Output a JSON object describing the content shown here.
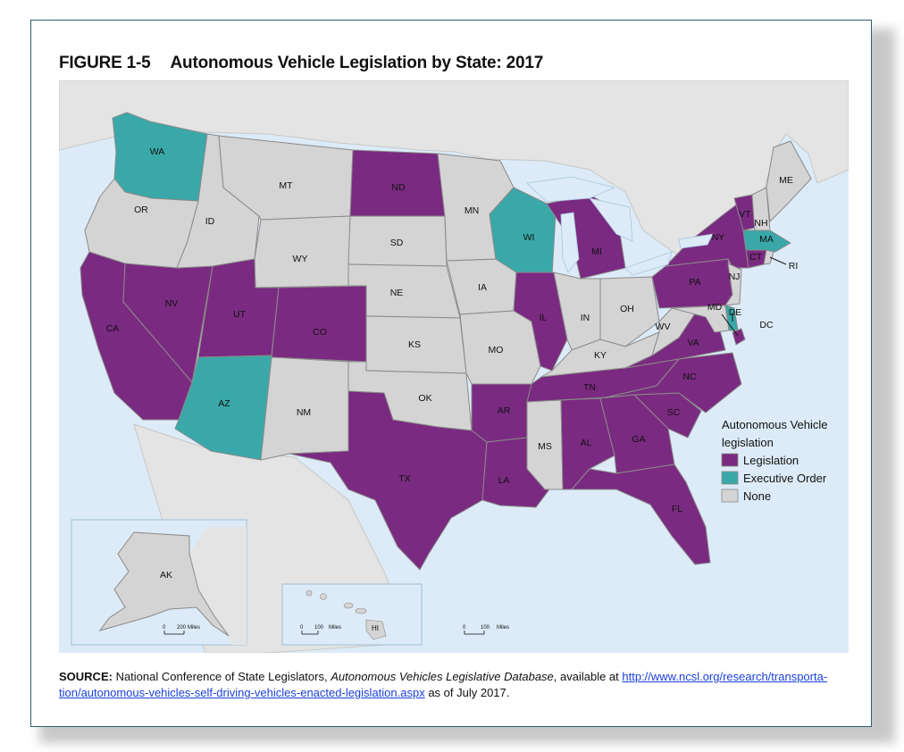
{
  "figure": {
    "number": "FIGURE 1-5",
    "title": "Autonomous Vehicle Legislation by State: 2017"
  },
  "colors": {
    "legislation": "#7a2a80",
    "executive_order": "#3aa8a8",
    "none": "#d4d4d4",
    "water": "#dcebf7",
    "land_outside": "#e4e4e4"
  },
  "legend": {
    "title_line1": "Autonomous Vehicle",
    "title_line2": "legislation",
    "items": [
      {
        "label": "Legislation",
        "category": "legislation"
      },
      {
        "label": "Executive Order",
        "category": "executive_order"
      },
      {
        "label": "None",
        "category": "none"
      }
    ]
  },
  "states": [
    {
      "abbr": "WA",
      "category": "executive_order"
    },
    {
      "abbr": "OR",
      "category": "none"
    },
    {
      "abbr": "CA",
      "category": "legislation"
    },
    {
      "abbr": "NV",
      "category": "legislation"
    },
    {
      "abbr": "ID",
      "category": "none"
    },
    {
      "abbr": "MT",
      "category": "none"
    },
    {
      "abbr": "WY",
      "category": "none"
    },
    {
      "abbr": "UT",
      "category": "legislation"
    },
    {
      "abbr": "AZ",
      "category": "executive_order"
    },
    {
      "abbr": "CO",
      "category": "legislation"
    },
    {
      "abbr": "NM",
      "category": "none"
    },
    {
      "abbr": "ND",
      "category": "legislation"
    },
    {
      "abbr": "SD",
      "category": "none"
    },
    {
      "abbr": "NE",
      "category": "none"
    },
    {
      "abbr": "KS",
      "category": "none"
    },
    {
      "abbr": "OK",
      "category": "none"
    },
    {
      "abbr": "TX",
      "category": "legislation"
    },
    {
      "abbr": "MN",
      "category": "none"
    },
    {
      "abbr": "IA",
      "category": "none"
    },
    {
      "abbr": "MO",
      "category": "none"
    },
    {
      "abbr": "AR",
      "category": "legislation"
    },
    {
      "abbr": "LA",
      "category": "legislation"
    },
    {
      "abbr": "WI",
      "category": "executive_order"
    },
    {
      "abbr": "IL",
      "category": "legislation"
    },
    {
      "abbr": "MI",
      "category": "legislation"
    },
    {
      "abbr": "IN",
      "category": "none"
    },
    {
      "abbr": "OH",
      "category": "none"
    },
    {
      "abbr": "KY",
      "category": "none"
    },
    {
      "abbr": "TN",
      "category": "legislation"
    },
    {
      "abbr": "MS",
      "category": "none"
    },
    {
      "abbr": "AL",
      "category": "legislation"
    },
    {
      "abbr": "GA",
      "category": "legislation"
    },
    {
      "abbr": "FL",
      "category": "legislation"
    },
    {
      "abbr": "SC",
      "category": "legislation"
    },
    {
      "abbr": "NC",
      "category": "legislation"
    },
    {
      "abbr": "VA",
      "category": "legislation"
    },
    {
      "abbr": "WV",
      "category": "none"
    },
    {
      "abbr": "PA",
      "category": "legislation"
    },
    {
      "abbr": "NY",
      "category": "legislation"
    },
    {
      "abbr": "VT",
      "category": "legislation"
    },
    {
      "abbr": "NH",
      "category": "none"
    },
    {
      "abbr": "ME",
      "category": "none"
    },
    {
      "abbr": "MA",
      "category": "executive_order"
    },
    {
      "abbr": "CT",
      "category": "legislation"
    },
    {
      "abbr": "RI",
      "category": "none"
    },
    {
      "abbr": "NJ",
      "category": "none"
    },
    {
      "abbr": "DE",
      "category": "executive_order"
    },
    {
      "abbr": "MD",
      "category": "none"
    },
    {
      "abbr": "DC",
      "category": "legislation"
    },
    {
      "abbr": "AK",
      "category": "none"
    },
    {
      "abbr": "HI",
      "category": "none"
    }
  ],
  "scales": {
    "alaska": {
      "zero": "0",
      "value": "200",
      "unit": "Miles"
    },
    "hawaii": {
      "zero": "0",
      "value": "100",
      "unit": "Miles"
    },
    "main": {
      "zero": "0",
      "value": "100",
      "unit": "Miles"
    }
  },
  "source": {
    "label": "SOURCE:",
    "text_before": " National Conference of State Legislators, ",
    "italic": "Autonomous Vehicles Legislative Database",
    "text_middle": ", available at ",
    "link": "http://www.ncsl.org/research/transportation/autonomous-vehicles-self-driving-vehicles-enacted-legislation.aspx",
    "link_line1": "http://www.ncsl.org/research/transporta-",
    "link_line2": "tion/autonomous-vehicles-self-driving-vehicles-enacted-legislation.aspx",
    "text_after": " as of July 2017."
  }
}
